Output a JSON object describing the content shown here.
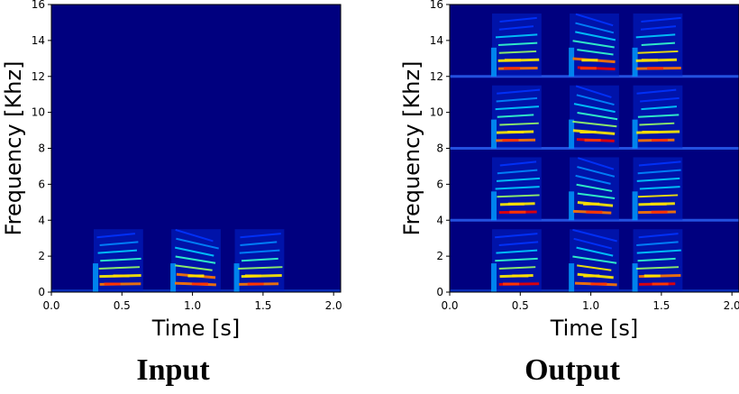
{
  "captions": {
    "input": "Input",
    "output": "Output"
  },
  "chart_data": [
    {
      "type": "heatmap",
      "panel": "Input",
      "xlabel": "Time [s]",
      "ylabel": "Frequency [Khz]",
      "xlim": [
        0.0,
        2.05
      ],
      "ylim": [
        0,
        16
      ],
      "xticks": [
        0.0,
        0.5,
        1.0,
        1.5,
        2.0
      ],
      "xtick_labels": [
        "0.0",
        "0.5",
        "1.0",
        "1.5",
        "2.0"
      ],
      "yticks": [
        0,
        2,
        4,
        6,
        8,
        10,
        12,
        14,
        16
      ],
      "ytick_labels": [
        "0",
        "2",
        "4",
        "6",
        "8",
        "10",
        "12",
        "14",
        "16"
      ],
      "colormap": "jet",
      "background_color": "#00007f",
      "syllables_s": [
        [
          0.3,
          0.65
        ],
        [
          0.85,
          1.2
        ],
        [
          1.3,
          1.65
        ]
      ],
      "energy_band_khz": [
        0,
        3.5
      ],
      "harmonic_spacing_khz": 0.45
    },
    {
      "type": "heatmap",
      "panel": "Output",
      "xlabel": "Time [s]",
      "ylabel": "Frequency [Khz]",
      "xlim": [
        0.0,
        2.05
      ],
      "ylim": [
        0,
        16
      ],
      "xticks": [
        0.0,
        0.5,
        1.0,
        1.5,
        2.0
      ],
      "xtick_labels": [
        "0.0",
        "0.5",
        "1.0",
        "1.5",
        "2.0"
      ],
      "yticks": [
        0,
        2,
        4,
        6,
        8,
        10,
        12,
        14,
        16
      ],
      "ytick_labels": [
        "0",
        "2",
        "4",
        "6",
        "8",
        "10",
        "12",
        "14",
        "16"
      ],
      "colormap": "jet",
      "background_color": "#00007f",
      "syllables_s": [
        [
          0.3,
          0.65
        ],
        [
          0.85,
          1.2
        ],
        [
          1.3,
          1.65
        ]
      ],
      "energy_bands_khz": [
        [
          0,
          3.5
        ],
        [
          4,
          7.5
        ],
        [
          8,
          11.5
        ],
        [
          12,
          15.5
        ]
      ],
      "boundary_lines_khz": [
        4,
        8,
        12
      ],
      "harmonic_spacing_khz": 0.45
    }
  ]
}
